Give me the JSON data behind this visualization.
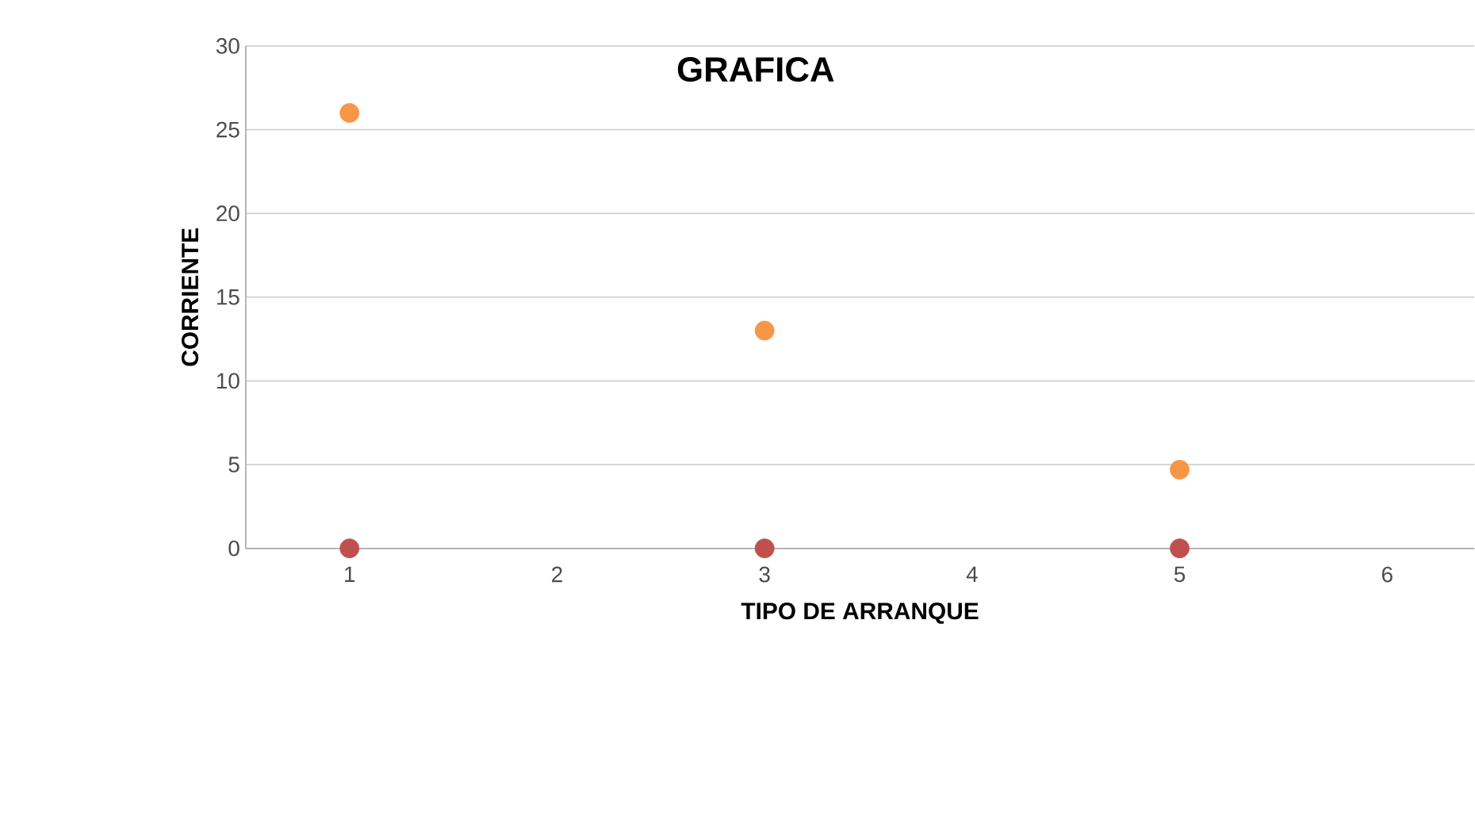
{
  "chart_data": {
    "type": "scatter",
    "title": "GRAFICA",
    "xlabel": "TIPO DE ARRANQUE",
    "ylabel": "CORRIENTE",
    "x": [
      1,
      3,
      5
    ],
    "series": [
      {
        "color": "#f79646",
        "values": [
          26,
          13,
          4.7
        ]
      },
      {
        "color": "#c0504d",
        "values": [
          0,
          0,
          0
        ]
      }
    ],
    "xlim": [
      0.5,
      6.42
    ],
    "ylim": [
      0,
      30
    ],
    "xticks": [
      1,
      2,
      3,
      4,
      5,
      6
    ],
    "yticks": [
      0,
      5,
      10,
      15,
      20,
      25,
      30
    ],
    "grid": "y"
  }
}
